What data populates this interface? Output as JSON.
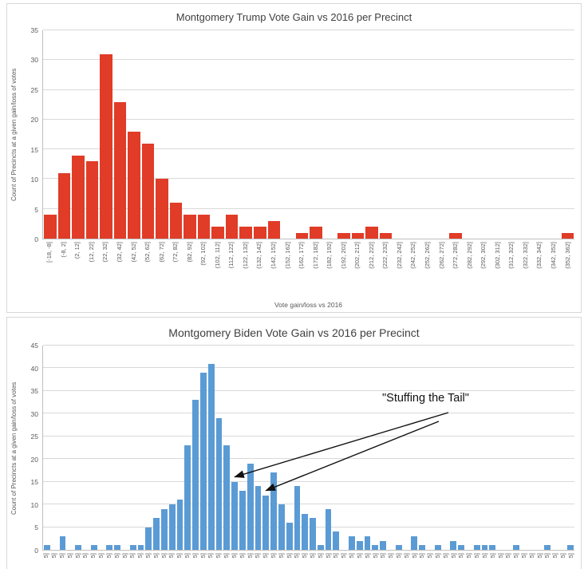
{
  "page": {
    "background": "#ffffff"
  },
  "colors": {
    "trump_bar": "#e03c28",
    "biden_bar": "#5b9bd5",
    "gridline": "#d9d9d9",
    "axis_line": "#bfbfbf",
    "tick_text": "#595959",
    "title_text": "#3f3f3f",
    "annotation_text": "#111111"
  },
  "chart_data": [
    {
      "id": "trump",
      "type": "bar",
      "title": "Montgomery Trump Vote Gain vs 2016 per Precinct",
      "ylabel": "Count of Precincts at a given gain/loss of votes",
      "xlabel": "Vote gain/loss vs 2016",
      "ylim": [
        0,
        35
      ],
      "ytick_step": 5,
      "grid": true,
      "legend": false,
      "bar_color": "#e03c28",
      "categories": [
        "[-18, -8]",
        "(-8, 2]",
        "(2, 12]",
        "(12, 22]",
        "(22, 32]",
        "(32, 42]",
        "(42, 52]",
        "(52, 62]",
        "(62, 72]",
        "(72, 82]",
        "(82, 92]",
        "(92, 102]",
        "(102, 112]",
        "(112, 122]",
        "(122, 132]",
        "(132, 142]",
        "(142, 152]",
        "(152, 162]",
        "(162, 172]",
        "(172, 182]",
        "(182, 192]",
        "(192, 202]",
        "(202, 212]",
        "(212, 222]",
        "(222, 232]",
        "(232, 242]",
        "(242, 252]",
        "(252, 262]",
        "(262, 272]",
        "(272, 282]",
        "(282, 292]",
        "(292, 302]",
        "(302, 312]",
        "(312, 322]",
        "(322, 332]",
        "(332, 342]",
        "(342, 352]",
        "(352, 362]"
      ],
      "values": [
        4,
        11,
        14,
        13,
        31,
        23,
        18,
        16,
        10,
        6,
        4,
        4,
        2,
        4,
        2,
        2,
        3,
        0,
        1,
        2,
        0,
        1,
        1,
        2,
        1,
        0,
        0,
        0,
        0,
        1,
        0,
        0,
        0,
        0,
        0,
        0,
        0,
        1
      ]
    },
    {
      "id": "biden",
      "type": "bar",
      "title": "Montgomery Biden Vote Gain vs 2016 per Precinct",
      "ylabel": "Count of Precincts at a given gain/loss of votes",
      "xlabel": "",
      "ylim": [
        0,
        45
      ],
      "ytick_step": 5,
      "grid": true,
      "legend": false,
      "bar_color": "#5b9bd5",
      "x_labels_clipped": true,
      "x_tick_fragment": "5]",
      "values": [
        1,
        0,
        3,
        0,
        1,
        0,
        1,
        0,
        1,
        1,
        0,
        1,
        1,
        5,
        7,
        9,
        10,
        11,
        23,
        33,
        39,
        41,
        29,
        23,
        15,
        13,
        19,
        14,
        12,
        17,
        10,
        6,
        14,
        8,
        7,
        1,
        9,
        4,
        0,
        3,
        2,
        3,
        1,
        2,
        0,
        1,
        0,
        3,
        1,
        0,
        1,
        0,
        2,
        1,
        0,
        1,
        1,
        1,
        0,
        0,
        1,
        0,
        0,
        0,
        1,
        0,
        0,
        1
      ],
      "annotation": {
        "text": "\"Stuffing the Tail\"",
        "arrows": [
          {
            "target_bin": 24
          },
          {
            "target_bin": 28
          }
        ]
      }
    }
  ]
}
